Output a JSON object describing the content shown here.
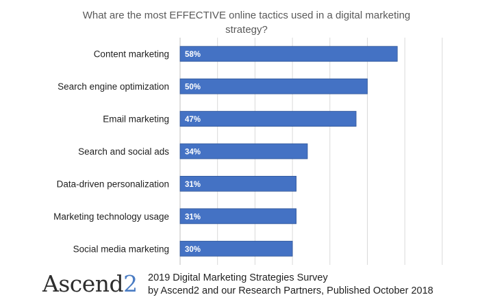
{
  "chart_data": {
    "type": "bar",
    "orientation": "horizontal",
    "title": "What are the most EFFECTIVE online tactics used in a digital marketing strategy?",
    "categories": [
      "Content marketing",
      "Search engine optimization",
      "Email marketing",
      "Search and social ads",
      "Data-driven personalization",
      "Marketing technology usage",
      "Social media marketing"
    ],
    "values": [
      58,
      50,
      47,
      34,
      31,
      31,
      30
    ],
    "data_labels": [
      "58%",
      "50%",
      "47%",
      "34%",
      "31%",
      "31%",
      "30%"
    ],
    "unit": "%",
    "xlim": [
      0,
      70
    ],
    "grid": "vertical gridlines",
    "bar_color": "#4472c4",
    "label_color": "#ffffff"
  },
  "logo": {
    "word": "Ascend",
    "number": "2",
    "number_color": "#4a7cc3"
  },
  "source": {
    "line1": "2019 Digital Marketing Strategies Survey",
    "line2": "by Ascend2 and our Research Partners, Published October 2018"
  }
}
